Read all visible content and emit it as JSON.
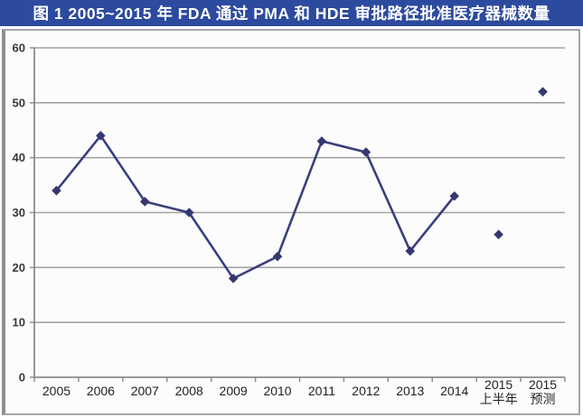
{
  "header": {
    "title": "图 1 2005~2015 年 FDA 通过 PMA 和 HDE 审批路径批准医疗器械数量"
  },
  "colors": {
    "title_bg": "#2c4a9e",
    "title_text": "#ffffff",
    "line": "#3a3f7d",
    "marker": "#34386f",
    "grid": "#a2a2a2",
    "axis": "#8c8c8c",
    "frame_border": "#a6a6a6",
    "plot_bg": "#fcfcfc"
  },
  "chart_data": {
    "type": "line",
    "title": "图 1 2005~2015 年 FDA 通过 PMA 和 HDE 审批路径批准医疗器械数量",
    "categories": [
      "2005",
      "2006",
      "2007",
      "2008",
      "2009",
      "2010",
      "2011",
      "2012",
      "2013",
      "2014",
      "2015\n上半年",
      "2015\n预测"
    ],
    "values": [
      34,
      44,
      32,
      30,
      18,
      22,
      43,
      41,
      23,
      33,
      26,
      52
    ],
    "connected_points": 10,
    "isolated_categories": [
      "2015 上半年",
      "2015 预测"
    ],
    "marker": "diamond",
    "xlabel": "",
    "ylabel": "",
    "ylim": [
      0,
      60
    ],
    "ytick_step": 10,
    "grid": true,
    "legend_position": "none"
  }
}
